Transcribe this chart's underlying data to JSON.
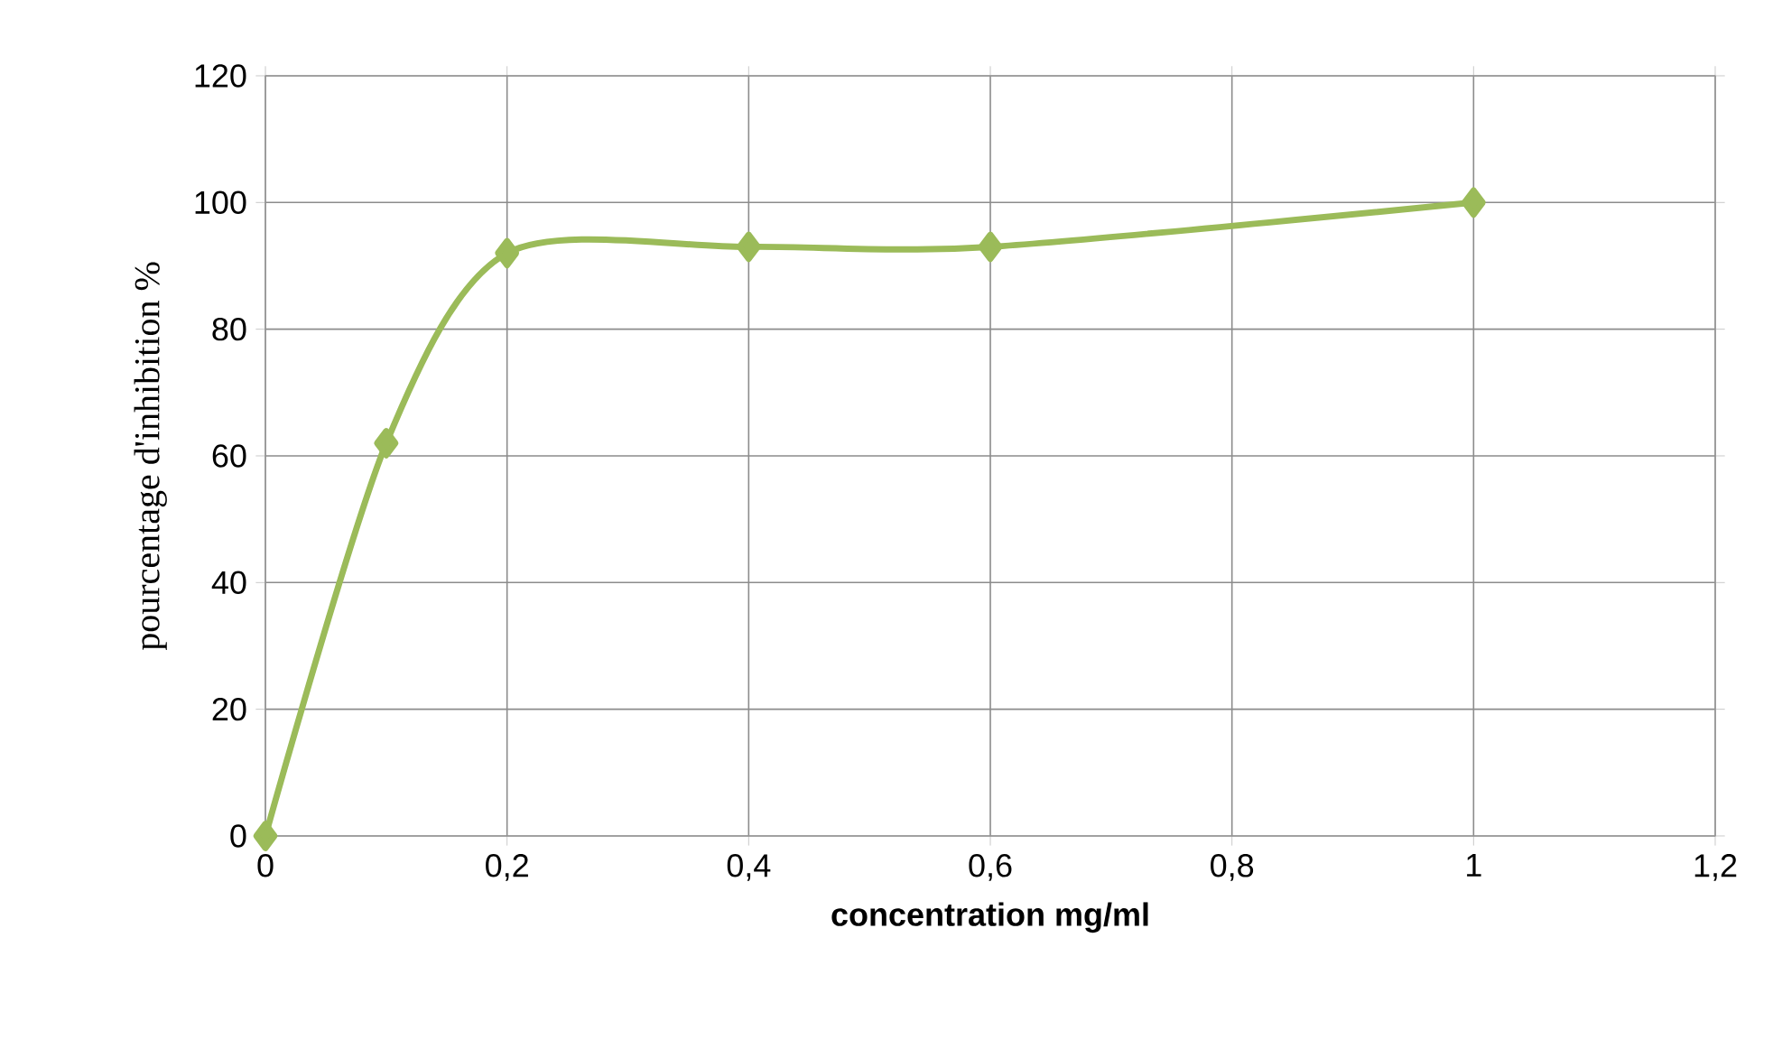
{
  "chart_data": {
    "type": "line",
    "xlabel": "concentration mg/ml",
    "ylabel": "pourcentage d'inhibition %",
    "x": [
      0,
      0.1,
      0.2,
      0.4,
      0.6,
      1
    ],
    "series": [
      {
        "color": "#9bbb59",
        "values": [
          0,
          62,
          92,
          93,
          93,
          100
        ]
      }
    ],
    "xlim": [
      0,
      1.2
    ],
    "xticks": [
      0,
      {
        "value": 0.2,
        "label": "0,2"
      },
      {
        "value": 0.4,
        "label": "0,4"
      },
      {
        "value": 0.6,
        "label": "0,6"
      },
      {
        "value": 0.8,
        "label": "0,8"
      },
      1,
      {
        "value": 1.2,
        "label": "1,2"
      }
    ],
    "ylim": [
      0,
      120
    ],
    "yticks": [
      0,
      20,
      40,
      60,
      80,
      100,
      120
    ],
    "grid": true,
    "marker": "diamond",
    "line_style": "solid"
  }
}
